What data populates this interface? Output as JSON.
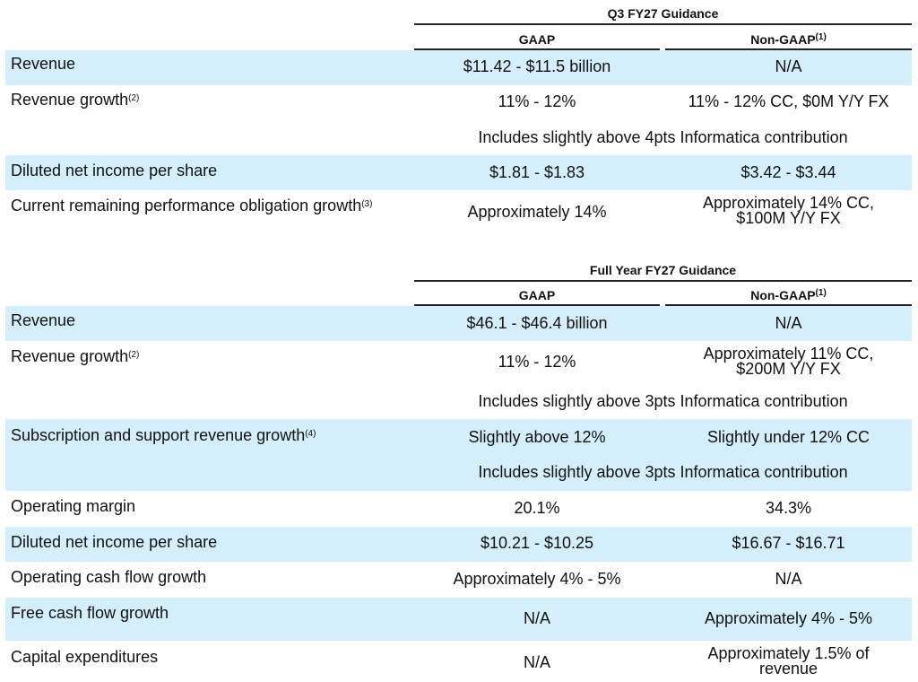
{
  "q3": {
    "title": "Q3 FY27 Guidance",
    "col_gaap": "GAAP",
    "col_nongaap": "Non-GAAP",
    "col_nongaap_note": "(1)",
    "rows": [
      {
        "label": "Revenue",
        "note": "",
        "gaap": "$11.42 - $11.5 billion",
        "nongaap": "N/A"
      },
      {
        "label": "Revenue growth",
        "note": "(2)",
        "gaap": "11% - 12%",
        "nongaap": "11% - 12% CC, $0M Y/Y FX",
        "span": "Includes slightly above 4pts Informatica contribution"
      },
      {
        "label": "Diluted net income per share",
        "note": "",
        "gaap": "$1.81 - $1.83",
        "nongaap": "$3.42 - $3.44"
      },
      {
        "label": "Current remaining performance obligation growth",
        "note": "(3)",
        "gaap": "Approximately 14%",
        "nongaap_l1": "Approximately 14% CC,",
        "nongaap_l2": "$100M Y/Y FX"
      }
    ]
  },
  "fy": {
    "title": "Full Year FY27 Guidance",
    "col_gaap": "GAAP",
    "col_nongaap": "Non-GAAP",
    "col_nongaap_note": "(1)",
    "rows": [
      {
        "label": "Revenue",
        "note": "",
        "gaap": "$46.1 - $46.4 billion",
        "nongaap": "N/A"
      },
      {
        "label": "Revenue growth",
        "note": "(2)",
        "gaap": "11% - 12%",
        "nongaap_l1": "Approximately 11% CC,",
        "nongaap_l2": "$200M Y/Y FX",
        "span": "Includes slightly above 3pts Informatica contribution"
      },
      {
        "label": "Subscription and support revenue growth",
        "note": "(4)",
        "gaap": "Slightly above 12%",
        "nongaap": "Slightly under 12% CC",
        "span": "Includes slightly above 3pts Informatica contribution"
      },
      {
        "label": "Operating margin",
        "note": "",
        "gaap": "20.1%",
        "nongaap": "34.3%"
      },
      {
        "label": "Diluted net income per share",
        "note": "",
        "gaap": "$10.21 - $10.25",
        "nongaap": "$16.67 - $16.71"
      },
      {
        "label": "Operating cash flow growth",
        "note": "",
        "gaap": "Approximately 4% - 5%",
        "nongaap": "N/A"
      },
      {
        "label": "Free cash flow growth",
        "note": "",
        "gaap": "N/A",
        "nongaap": "Approximately 4% - 5%"
      },
      {
        "label": "Capital expenditures",
        "note": "",
        "gaap": "N/A",
        "nongaap_l1": "Approximately 1.5% of",
        "nongaap_l2": "revenue"
      }
    ]
  }
}
